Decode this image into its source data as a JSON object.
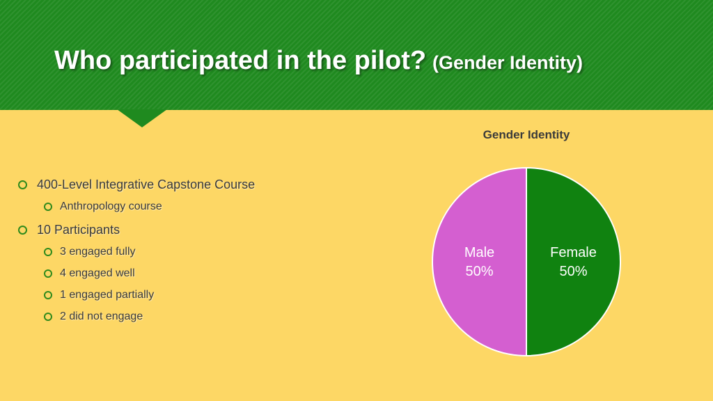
{
  "slide": {
    "title_main": "Who participated in the pilot?",
    "title_sub": "(Gender Identity)"
  },
  "bullets": [
    {
      "level": 1,
      "text": "400-Level Integrative Capstone Course"
    },
    {
      "level": 2,
      "text": "Anthropology course"
    },
    {
      "level": 1,
      "text": "10 Participants"
    },
    {
      "level": 2,
      "text": "3 engaged fully"
    },
    {
      "level": 2,
      "text": "4 engaged well"
    },
    {
      "level": 2,
      "text": "1 engaged partially"
    },
    {
      "level": 2,
      "text": "2 did not engage"
    }
  ],
  "colors": {
    "header": "#1f8a1f",
    "background": "#fdd765",
    "female": "#108210",
    "male": "#d45fd0"
  },
  "chart_data": {
    "type": "pie",
    "title": "Gender Identity",
    "slices": [
      {
        "label": "Female",
        "value": 50,
        "percent_label": "50%",
        "color": "#108210"
      },
      {
        "label": "Male",
        "value": 50,
        "percent_label": "50%",
        "color": "#d45fd0"
      }
    ],
    "start": "top",
    "direction": "clockwise"
  }
}
